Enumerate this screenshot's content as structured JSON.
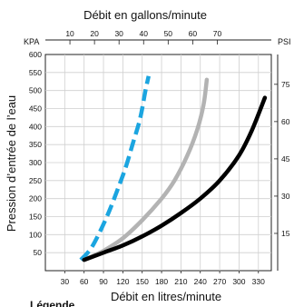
{
  "chart_data": {
    "type": "line",
    "title": "",
    "xlabel": "Débit en litres/minute",
    "x2label": "Débit en gallons/minute",
    "ylabel": "Pression d’entrée de l’eau",
    "y_unit": "KPA",
    "y2_unit": "PSI",
    "xlim": [
      0,
      350
    ],
    "ylim": [
      0,
      600
    ],
    "x2lim": [
      0,
      92
    ],
    "y2lim": [
      0,
      87
    ],
    "xticks": [
      30,
      60,
      90,
      120,
      150,
      180,
      210,
      240,
      270,
      300,
      330
    ],
    "yticks": [
      50,
      100,
      150,
      200,
      250,
      300,
      350,
      400,
      450,
      500,
      550,
      600
    ],
    "x2ticks": [
      10,
      20,
      30,
      40,
      50,
      60,
      70
    ],
    "y2ticks": [
      15,
      30,
      45,
      60,
      75
    ],
    "grid": true,
    "legend_label": "Légende",
    "series": [
      {
        "style": "dashed",
        "color": "#1ba5e0",
        "x": [
          55,
          70,
          85,
          100,
          115,
          125,
          135,
          145,
          150,
          155,
          160
        ],
        "y": [
          30,
          60,
          110,
          170,
          240,
          290,
          350,
          410,
          450,
          500,
          540
        ]
      },
      {
        "style": "solid",
        "color": "#b3b3b3",
        "x": [
          60,
          90,
          120,
          150,
          180,
          200,
          220,
          235,
          245,
          250
        ],
        "y": [
          30,
          55,
          90,
          140,
          200,
          250,
          320,
          390,
          460,
          530
        ]
      },
      {
        "style": "solid",
        "color": "#000000",
        "x": [
          60,
          90,
          120,
          150,
          180,
          210,
          240,
          270,
          300,
          320,
          340
        ],
        "y": [
          30,
          50,
          70,
          95,
          125,
          160,
          200,
          250,
          320,
          390,
          480
        ]
      }
    ]
  }
}
